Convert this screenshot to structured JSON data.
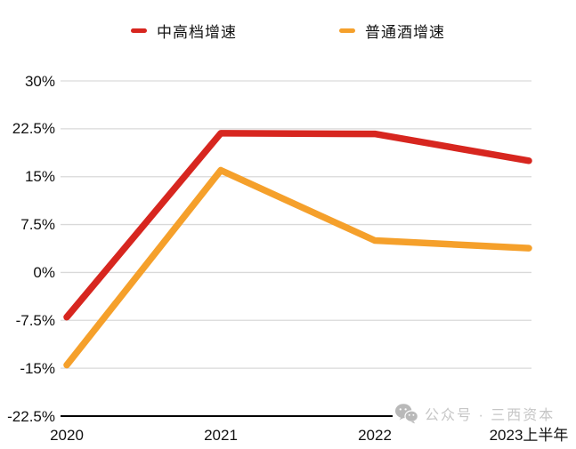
{
  "legend": {
    "items": [
      {
        "label": "中高档增速",
        "color": "#d7261f"
      },
      {
        "label": "普通酒增速",
        "color": "#f5a02b"
      }
    ]
  },
  "chart_data": {
    "type": "line",
    "categories": [
      "2020",
      "2021",
      "2022",
      "2023上半年"
    ],
    "series": [
      {
        "name": "中高档增速",
        "color": "#d7261f",
        "values": [
          -7,
          21.8,
          21.7,
          17.5
        ]
      },
      {
        "name": "普通酒增速",
        "color": "#f5a02b",
        "values": [
          -14.5,
          16,
          5,
          3.8
        ]
      }
    ],
    "yticks": [
      "30%",
      "22.5%",
      "15%",
      "7.5%",
      "0%",
      "-7.5%",
      "-15%",
      "-22.5%"
    ],
    "ytick_values": [
      30,
      22.5,
      15,
      7.5,
      0,
      -7.5,
      -15,
      -22.5
    ],
    "ylim": [
      -22.5,
      30
    ],
    "title": "",
    "xlabel": "",
    "ylabel": "",
    "grid": true,
    "legend_position": "top",
    "gridline_color": "#d9d9d9",
    "axis_color": "#000000"
  },
  "watermark": {
    "icon": "wechat-logo",
    "text": "公众号 · 三西资本"
  }
}
